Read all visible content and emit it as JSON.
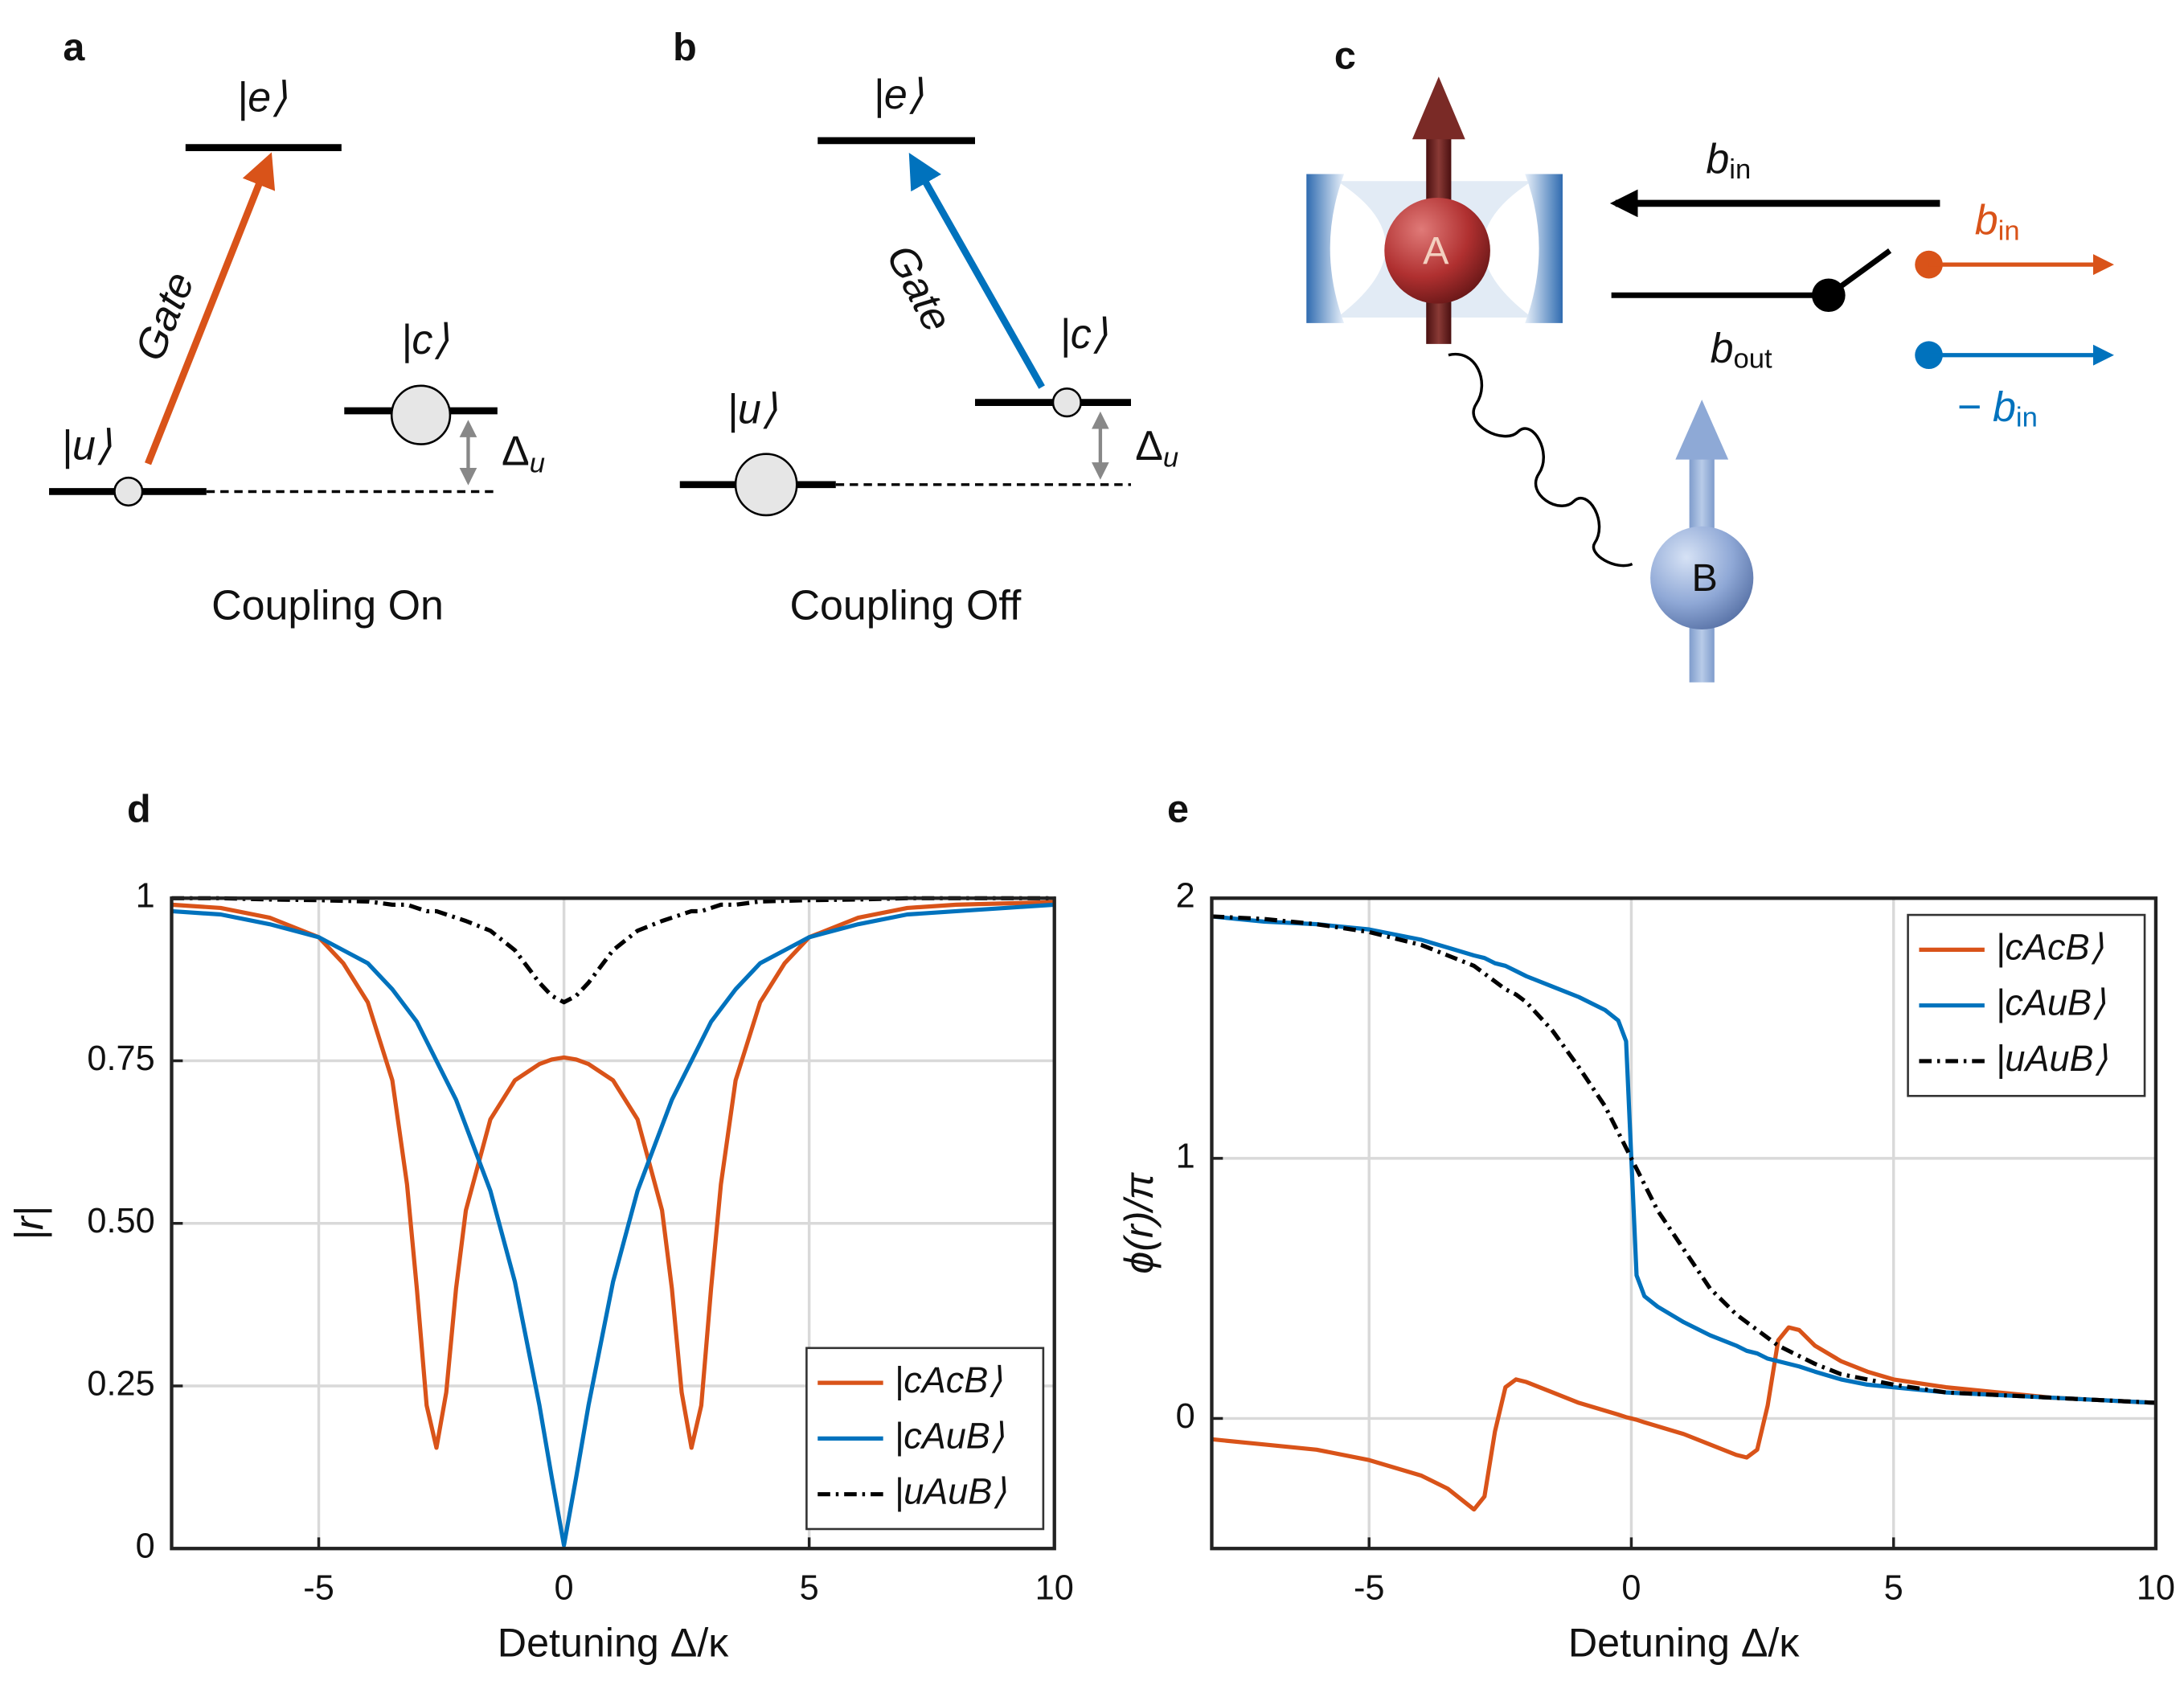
{
  "panels": {
    "a": {
      "label": "a",
      "excited": "|e⟩",
      "upper": "|c⟩",
      "lower": "|u⟩",
      "gate": "Gate",
      "detuning": {
        "symbol": "Δ",
        "subscript": "u"
      },
      "caption": "Coupling On"
    },
    "b": {
      "label": "b",
      "excited": "|e⟩",
      "upper": "|c⟩",
      "lower": "|u⟩",
      "gate": "Gate",
      "detuning": {
        "symbol": "Δ",
        "subscript": "u"
      },
      "caption": "Coupling Off"
    },
    "c": {
      "label": "c",
      "atom_a": "A",
      "atom_b": "B",
      "input": {
        "symbol": "b",
        "subscript": "in"
      },
      "output": {
        "symbol": "b",
        "subscript": "out"
      },
      "orange_input": {
        "symbol": "b",
        "subscript": "in"
      },
      "blue_input": {
        "symbol": "− b",
        "subscript": "in"
      }
    }
  },
  "chart_data": [
    {
      "type": "line",
      "panel_label": "d",
      "x_label": "Detuning Δ/κ",
      "y_label": "|r|",
      "xlim": [
        -8,
        10
      ],
      "ylim": [
        0,
        1
      ],
      "xticks": [
        -5,
        0,
        5,
        10
      ],
      "yticks": [
        0,
        0.25,
        {
          "value": 0.5,
          "label": "0.50"
        },
        0.75,
        1
      ],
      "grid": true,
      "legend": "lower right",
      "x": [
        -8,
        -7,
        -6,
        -5,
        -4.5,
        -4,
        -3.5,
        -3.2,
        -3,
        -2.8,
        -2.6,
        -2.4,
        -2.2,
        -2,
        -1.5,
        -1,
        -0.5,
        -0.25,
        0,
        0.25,
        0.5,
        1,
        1.5,
        2,
        2.2,
        2.4,
        2.6,
        2.8,
        3,
        3.2,
        3.5,
        4,
        4.5,
        5,
        6,
        7,
        8,
        9,
        10
      ],
      "series": [
        {
          "name": "|cAcB⟩",
          "color": "#d95319",
          "dash": "solid",
          "values": [
            0.99,
            0.985,
            0.97,
            0.94,
            0.9,
            0.84,
            0.72,
            0.56,
            0.4,
            0.22,
            0.155,
            0.24,
            0.4,
            0.52,
            0.66,
            0.72,
            0.745,
            0.752,
            0.755,
            0.752,
            0.745,
            0.72,
            0.66,
            0.52,
            0.4,
            0.24,
            0.155,
            0.22,
            0.4,
            0.56,
            0.72,
            0.84,
            0.9,
            0.94,
            0.97,
            0.985,
            0.99,
            0.992,
            0.994
          ]
        },
        {
          "name": "|cAuB⟩",
          "color": "#0072bd",
          "dash": "solid",
          "values": [
            0.98,
            0.975,
            0.96,
            0.94,
            0.92,
            0.9,
            0.86,
            0.83,
            0.81,
            0.78,
            0.75,
            0.72,
            0.69,
            0.65,
            0.55,
            0.41,
            0.22,
            0.11,
            0.005,
            0.11,
            0.22,
            0.41,
            0.55,
            0.65,
            0.69,
            0.72,
            0.75,
            0.78,
            0.81,
            0.83,
            0.86,
            0.9,
            0.92,
            0.94,
            0.96,
            0.975,
            0.98,
            0.985,
            0.99
          ]
        },
        {
          "name": "|uAuB⟩",
          "color": "#000000",
          "dash": "dashdot",
          "values": [
            1,
            1,
            0.998,
            0.997,
            0.996,
            0.995,
            0.99,
            0.99,
            0.985,
            0.98,
            0.98,
            0.975,
            0.97,
            0.965,
            0.95,
            0.92,
            0.87,
            0.85,
            0.84,
            0.85,
            0.87,
            0.92,
            0.95,
            0.965,
            0.97,
            0.975,
            0.98,
            0.98,
            0.985,
            0.99,
            0.99,
            0.995,
            0.996,
            0.997,
            0.998,
            1,
            1,
            1,
            1
          ]
        }
      ]
    },
    {
      "type": "line",
      "panel_label": "e",
      "x_label": "Detuning Δ/κ",
      "y_label": "ϕ(r)/π",
      "xlim": [
        -8,
        10
      ],
      "ylim": [
        -0.5,
        2
      ],
      "xticks": [
        -5,
        0,
        5,
        10
      ],
      "yticks": [
        0,
        1,
        2
      ],
      "grid": true,
      "legend": "upper right",
      "x": [
        -8,
        -7,
        -6,
        -5,
        -4,
        -3.5,
        -3,
        -2.8,
        -2.6,
        -2.4,
        -2.2,
        -2,
        -1.5,
        -1,
        -0.5,
        -0.25,
        -0.1,
        0,
        0.1,
        0.25,
        0.5,
        1,
        1.5,
        2,
        2.2,
        2.4,
        2.6,
        2.8,
        3,
        3.2,
        3.5,
        4,
        4.5,
        5,
        6,
        7,
        8,
        9,
        10
      ],
      "series": [
        {
          "name": "|cAcB⟩",
          "color": "#d95319",
          "dash": "solid",
          "values": [
            -0.08,
            -0.1,
            -0.12,
            -0.16,
            -0.22,
            -0.27,
            -0.35,
            -0.3,
            -0.05,
            0.12,
            0.15,
            0.14,
            0.1,
            0.06,
            0.03,
            0.015,
            0.005,
            0,
            -0.005,
            -0.015,
            -0.03,
            -0.06,
            -0.1,
            -0.14,
            -0.15,
            -0.12,
            0.05,
            0.3,
            0.35,
            0.34,
            0.28,
            0.22,
            0.18,
            0.15,
            0.12,
            0.1,
            0.08,
            0.07,
            0.06
          ]
        },
        {
          "name": "|cAuB⟩",
          "color": "#0072bd",
          "dash": "solid",
          "values": [
            1.93,
            1.91,
            1.9,
            1.88,
            1.84,
            1.81,
            1.78,
            1.77,
            1.75,
            1.74,
            1.72,
            1.7,
            1.66,
            1.62,
            1.57,
            1.53,
            1.45,
            1,
            0.55,
            0.47,
            0.43,
            0.37,
            0.32,
            0.28,
            0.26,
            0.25,
            0.23,
            0.22,
            0.21,
            0.2,
            0.18,
            0.15,
            0.13,
            0.12,
            0.1,
            0.09,
            0.08,
            0.07,
            0.06
          ]
        },
        {
          "name": "|uAuB⟩",
          "color": "#000000",
          "dash": "dashdot",
          "values": [
            1.93,
            1.92,
            1.9,
            1.87,
            1.82,
            1.78,
            1.74,
            1.71,
            1.68,
            1.65,
            1.63,
            1.6,
            1.49,
            1.35,
            1.2,
            1.1,
            1.04,
            1,
            0.96,
            0.9,
            0.8,
            0.65,
            0.5,
            0.4,
            0.37,
            0.34,
            0.31,
            0.28,
            0.26,
            0.24,
            0.21,
            0.17,
            0.15,
            0.13,
            0.1,
            0.09,
            0.08,
            0.07,
            0.06
          ]
        }
      ]
    }
  ]
}
